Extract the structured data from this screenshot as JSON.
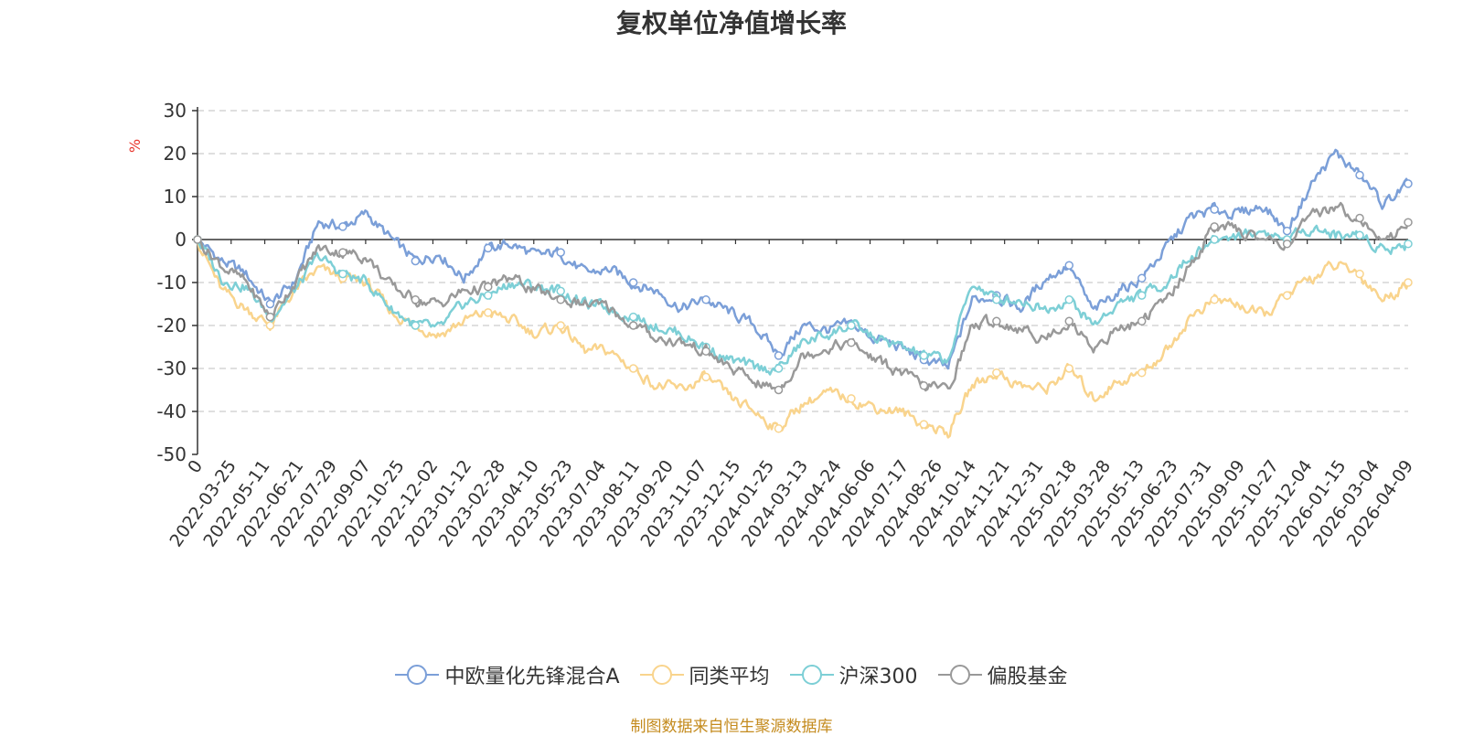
{
  "chart_data": {
    "type": "line",
    "title": "复权单位净值增长率",
    "ylabel": "%",
    "xlabel": "",
    "ylim": [
      -50,
      30
    ],
    "yticks": [
      30,
      20,
      10,
      0,
      -10,
      -20,
      -30,
      -40,
      -50
    ],
    "x_ticks": [
      "0",
      "2022-03-25",
      "2022-05-11",
      "2022-06-21",
      "2022-07-29",
      "2022-09-07",
      "2022-10-25",
      "2022-12-02",
      "2023-01-12",
      "2023-02-28",
      "2023-04-10",
      "2023-05-23",
      "2023-07-04",
      "2023-08-11",
      "2023-09-20",
      "2023-11-07",
      "2023-12-15",
      "2024-01-25",
      "2024-03-13",
      "2024-04-24",
      "2024-06-06",
      "2024-07-17",
      "2024-08-26",
      "2024-10-14",
      "2024-11-21",
      "2024-12-31",
      "2025-02-18",
      "2025-03-28",
      "2025-05-13",
      "2025-06-23",
      "2025-07-31",
      "2025-09-09",
      "2025-10-27",
      "2025-12-04",
      "2026-01-15",
      "2026-03-04",
      "2026-04-09"
    ],
    "grid": true,
    "legend_position": "bottom",
    "series": [
      {
        "name": "中欧量化先锋混合A",
        "color": "#7b9fd8",
        "values": [
          0,
          -5,
          -8,
          -15,
          -10,
          4,
          3,
          6,
          0,
          -5,
          -3,
          -9,
          -2,
          -1,
          -4,
          -3,
          -8,
          -7,
          -10,
          -12,
          -16,
          -14,
          -17,
          -20,
          -27,
          -20,
          -21,
          -20,
          -23,
          -25,
          -28,
          -30,
          -14,
          -13,
          -16,
          -9,
          -6,
          -17,
          -12,
          -9,
          -2,
          5,
          7,
          6,
          8,
          2,
          13,
          20,
          15,
          8,
          13
        ]
      },
      {
        "name": "同类平均",
        "color": "#f9d48d",
        "values": [
          0,
          -12,
          -16,
          -20,
          -12,
          -7,
          -9,
          -10,
          -17,
          -20,
          -22,
          -19,
          -17,
          -19,
          -22,
          -20,
          -26,
          -26,
          -30,
          -34,
          -35,
          -32,
          -37,
          -40,
          -44,
          -38,
          -36,
          -37,
          -39,
          -40,
          -43,
          -45,
          -34,
          -31,
          -34,
          -35,
          -30,
          -37,
          -33,
          -31,
          -26,
          -18,
          -14,
          -15,
          -18,
          -13,
          -9,
          -6,
          -8,
          -14,
          -10
        ]
      },
      {
        "name": "沪深300",
        "color": "#7dcfd6",
        "values": [
          0,
          -9,
          -11,
          -18,
          -12,
          -4,
          -8,
          -10,
          -16,
          -20,
          -21,
          -15,
          -13,
          -10,
          -11,
          -12,
          -15,
          -16,
          -18,
          -20,
          -22,
          -25,
          -28,
          -30,
          -30,
          -24,
          -22,
          -20,
          -23,
          -25,
          -27,
          -28,
          -10,
          -14,
          -14,
          -16,
          -14,
          -20,
          -15,
          -13,
          -10,
          -4,
          0,
          1,
          2,
          0,
          3,
          1,
          1,
          -2,
          -1
        ]
      },
      {
        "name": "偏股基金",
        "color": "#999999",
        "values": [
          0,
          -6,
          -10,
          -18,
          -10,
          -2,
          -3,
          -4,
          -11,
          -14,
          -15,
          -12,
          -11,
          -9,
          -12,
          -14,
          -15,
          -16,
          -20,
          -23,
          -24,
          -26,
          -30,
          -33,
          -35,
          -27,
          -25,
          -24,
          -28,
          -31,
          -34,
          -35,
          -20,
          -19,
          -21,
          -23,
          -19,
          -25,
          -21,
          -19,
          -14,
          -6,
          3,
          2,
          0,
          -1,
          5,
          8,
          5,
          -1,
          4
        ]
      }
    ]
  },
  "source_text": "制图数据来自恒生聚源数据库"
}
